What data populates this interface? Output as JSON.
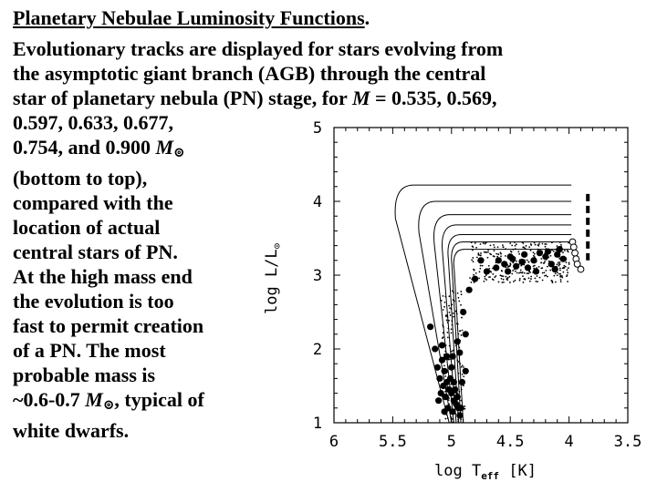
{
  "heading": {
    "title": "Planetary Nebulae Luminosity Functions",
    "title_end": "."
  },
  "text": {
    "line1": "Evolutionary tracks are displayed for stars evolving from",
    "line2": "the asymptotic giant branch (AGB) through the central",
    "line3_pre": "star of planetary nebula (PN) stage, for ",
    "line3_var": "M",
    "line3_post": " = 0.535, 0.569,",
    "line4": "0.597, 0.633, 0.677,",
    "line5_pre": "0.754, and 0.900 ",
    "line5_var": "M",
    "line6": "(bottom to top),",
    "line7": "compared with the",
    "line8": "location of actual",
    "line9": "central stars of PN.",
    "line10": "At the high mass end",
    "line11": "the evolution is too",
    "line12": "fast to permit creation",
    "line13": "of a PN. The most",
    "line14": "probable mass is",
    "line15_pre": "~0.6-0.7 ",
    "line15_var": "M",
    "line15_post": ", typical of",
    "line16": "white dwarfs.",
    "sun_symbol": "⊚"
  },
  "chart_data": {
    "type": "line",
    "xlabel": "log T",
    "xlabel_sub": "eff",
    "xlabel_unit": "[K]",
    "ylabel": "log L/L",
    "ylabel_sun": "⊙",
    "xlim": [
      6.0,
      3.5
    ],
    "ylim": [
      1,
      5
    ],
    "x_ticks": [
      "6",
      "5.5",
      "5",
      "4.5",
      "4",
      "3.5"
    ],
    "x_tick_values": [
      6.0,
      5.5,
      5.0,
      4.5,
      4.0,
      3.5
    ],
    "y_ticks": [
      "1",
      "2",
      "3",
      "4",
      "5"
    ],
    "y_tick_values": [
      1,
      2,
      3,
      4,
      5
    ],
    "masses": [
      0.535,
      0.569,
      0.597,
      0.633,
      0.677,
      0.754,
      0.9
    ],
    "tracks": [
      {
        "plateau": 3.35,
        "agb_x": 3.98,
        "peak_x": 5.0,
        "bottom_x": 4.9
      },
      {
        "plateau": 3.45,
        "agb_x": 3.98,
        "peak_x": 5.02,
        "bottom_x": 4.92
      },
      {
        "plateau": 3.55,
        "agb_x": 3.98,
        "peak_x": 5.05,
        "bottom_x": 4.94
      },
      {
        "plateau": 3.68,
        "agb_x": 3.98,
        "peak_x": 5.1,
        "bottom_x": 4.96
      },
      {
        "plateau": 3.82,
        "agb_x": 3.98,
        "peak_x": 5.17,
        "bottom_x": 4.98
      },
      {
        "plateau": 4.0,
        "agb_x": 3.98,
        "peak_x": 5.3,
        "bottom_x": 5.0
      },
      {
        "plateau": 4.22,
        "agb_x": 3.98,
        "peak_x": 5.5,
        "bottom_x": 5.02
      }
    ],
    "large_dots": [
      [
        5.18,
        2.3
      ],
      [
        5.08,
        1.85
      ],
      [
        5.06,
        1.7
      ],
      [
        5.04,
        1.55
      ],
      [
        5.02,
        1.45
      ],
      [
        5.0,
        1.4
      ],
      [
        4.98,
        1.3
      ],
      [
        4.96,
        1.25
      ],
      [
        4.94,
        1.2
      ],
      [
        5.1,
        1.6
      ],
      [
        5.12,
        1.75
      ],
      [
        5.05,
        1.35
      ],
      [
        5.03,
        1.2
      ],
      [
        4.99,
        1.15
      ],
      [
        5.07,
        1.5
      ],
      [
        5.09,
        1.4
      ],
      [
        5.01,
        1.6
      ],
      [
        4.97,
        1.45
      ],
      [
        4.95,
        1.35
      ],
      [
        5.0,
        1.75
      ],
      [
        4.93,
        1.1
      ],
      [
        5.04,
        1.9
      ],
      [
        4.98,
        1.55
      ],
      [
        5.14,
        2.0
      ],
      [
        5.08,
        2.05
      ],
      [
        4.92,
        1.2
      ],
      [
        5.11,
        1.3
      ],
      [
        4.99,
        1.9
      ],
      [
        5.06,
        1.15
      ],
      [
        4.85,
        2.8
      ],
      [
        4.8,
        2.95
      ],
      [
        4.7,
        3.05
      ],
      [
        4.55,
        3.15
      ],
      [
        4.4,
        3.18
      ],
      [
        4.3,
        3.2
      ],
      [
        4.2,
        3.25
      ],
      [
        4.1,
        3.28
      ],
      [
        4.05,
        3.22
      ],
      [
        4.62,
        3.1
      ],
      [
        4.48,
        3.22
      ],
      [
        4.35,
        3.1
      ],
      [
        4.25,
        3.3
      ],
      [
        4.15,
        3.15
      ],
      [
        4.9,
        2.5
      ],
      [
        4.88,
        2.2
      ],
      [
        4.93,
        1.95
      ],
      [
        4.75,
        3.2
      ],
      [
        4.45,
        3.12
      ],
      [
        4.18,
        3.32
      ],
      [
        4.95,
        2.1
      ],
      [
        4.88,
        1.7
      ],
      [
        4.91,
        1.55
      ],
      [
        4.5,
        3.25
      ],
      [
        4.38,
        3.28
      ],
      [
        4.12,
        3.08
      ],
      [
        4.08,
        3.35
      ],
      [
        4.28,
        3.05
      ],
      [
        4.6,
        3.2
      ],
      [
        4.52,
        3.05
      ]
    ],
    "open_dots": [
      [
        3.97,
        3.45
      ],
      [
        3.96,
        3.38
      ],
      [
        3.95,
        3.3
      ],
      [
        3.94,
        3.22
      ],
      [
        3.93,
        3.15
      ],
      [
        3.9,
        3.08
      ]
    ],
    "vbars": [
      {
        "x": 3.84,
        "y0": 4.1,
        "y1": 3.2
      }
    ]
  }
}
